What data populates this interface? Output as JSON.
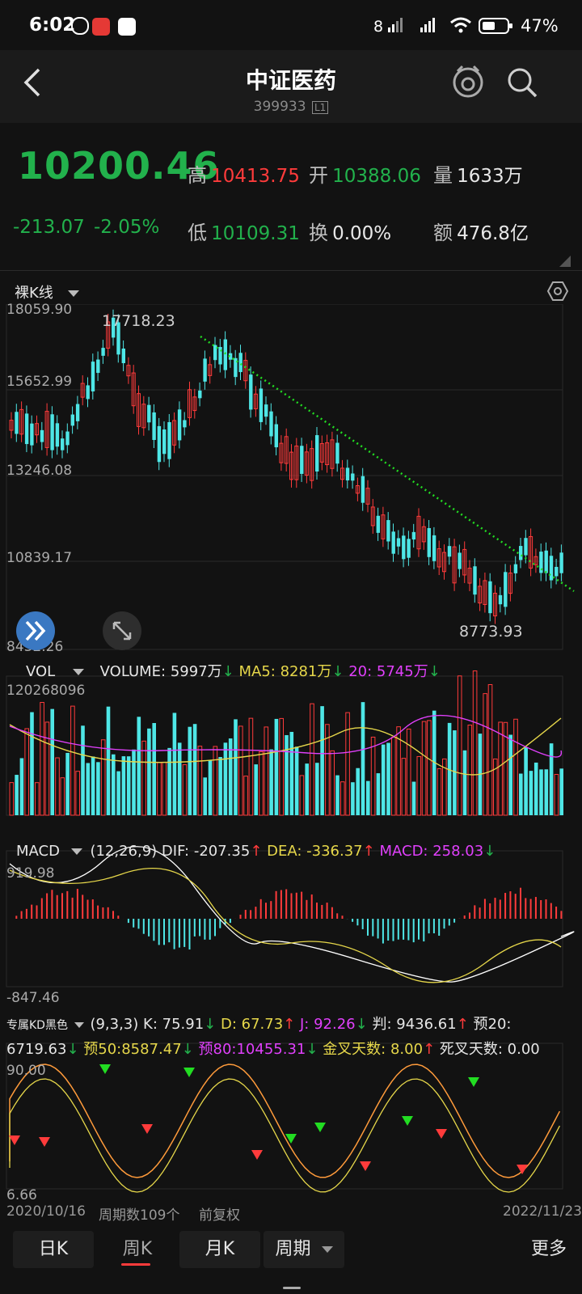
{
  "status": {
    "time": "6:02",
    "battery": "47%"
  },
  "header": {
    "title": "中证医药",
    "code": "399933",
    "badge": "L1"
  },
  "quote": {
    "price": "10200.46",
    "change": "-213.07",
    "change_pct": "-2.05%",
    "high_label": "高",
    "high": "10413.75",
    "open_label": "开",
    "open": "10388.06",
    "volume_label": "量",
    "volume": "1633万",
    "low_label": "低",
    "low": "10109.31",
    "turnover_label": "换",
    "turnover": "0.00%",
    "amount_label": "额",
    "amount": "476.8亿"
  },
  "kline": {
    "mode_label": "裸K线",
    "y_ticks": [
      "18059.90",
      "15652.99",
      "13246.08",
      "10839.17",
      "8432.26"
    ],
    "high_annot": "17718.23",
    "low_annot": "8773.93"
  },
  "volume": {
    "label": "VOL",
    "volume_text": "VOLUME: 5997万",
    "ma5_text": "MA5: 8281万",
    "ma20_text": "20: 5745万",
    "max_tick": "120268096"
  },
  "macd": {
    "label": "MACD",
    "params": "(12,26,9)",
    "dif_text": "DIF: -207.35",
    "dea_text": "DEA: -336.37",
    "macd_text": "MACD: 258.03",
    "y_top": "919.98",
    "y_bottom": "-847.46"
  },
  "kd": {
    "label": "专属KD黑色",
    "params": "(9,3,3)",
    "k_text": "K: 75.91",
    "d_text": "D: 67.73",
    "j_text": "J: 92.26",
    "pan_text": "判: 9436.61",
    "y20_text": "预20:",
    "y20_val": "6719.63",
    "y50_text": "预50:8587.47",
    "y80_text": "预80:10455.31",
    "gold_text": "金叉天数: 8.00",
    "dead_text": "死叉天数: 0.00",
    "y_top": "90.00",
    "y_bottom": "6.66"
  },
  "footer_info": {
    "start_date": "2020/10/16",
    "periods": "周期数109个",
    "adjust": "前复权",
    "end_date": "2022/11/23"
  },
  "tabs": {
    "day": "日K",
    "week": "周K",
    "month": "月K",
    "period": "周期",
    "more": "更多"
  },
  "colors": {
    "up": "#ff3b3b",
    "down": "#4ee6e6",
    "accent_green": "#22b14c",
    "ma_yellow": "#e6d74a",
    "ma_magenta": "#e040fb"
  }
}
